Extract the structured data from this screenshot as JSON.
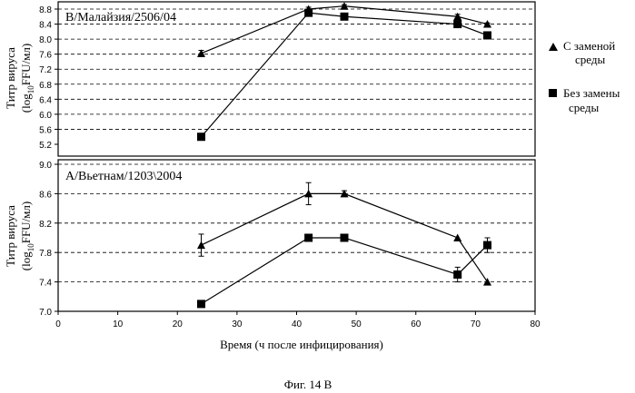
{
  "chart_data": [
    {
      "type": "line",
      "title": "B/Малайзия/2506/04",
      "ylabel_line1": "Титр вируса",
      "ylabel_line2_prefix": "(log",
      "ylabel_line2_sub": "10",
      "ylabel_line2_suffix": "FFU/мл)",
      "ylim": [
        5.2,
        8.8
      ],
      "yticks": [
        "8.8",
        "8.4",
        "8.0",
        "7.6",
        "7.2",
        "6.8",
        "6.4",
        "6.0",
        "5.6",
        "5.2"
      ],
      "grid": "dashed horizontal",
      "series": [
        {
          "name": "С заменой среды",
          "marker": "triangle",
          "x": [
            24,
            42,
            48,
            67,
            72
          ],
          "y": [
            7.62,
            8.8,
            8.88,
            8.6,
            8.4
          ],
          "err": [
            0.08,
            0.05,
            0.04,
            0.06,
            0.03
          ]
        },
        {
          "name": "Без замены среды",
          "marker": "square",
          "x": [
            24,
            42,
            48,
            67,
            72
          ],
          "y": [
            5.4,
            8.7,
            8.6,
            8.4,
            8.1
          ],
          "err": [
            0,
            0,
            0,
            0,
            0
          ]
        }
      ]
    },
    {
      "type": "line",
      "title": "A/Вьетнам/1203\\2004",
      "ylabel_line1": "Титр вируса",
      "ylabel_line2_prefix": "(log",
      "ylabel_line2_sub": "10",
      "ylabel_line2_suffix": "FFU/мл)",
      "ylim": [
        7.0,
        9.0
      ],
      "yticks": [
        "9.0",
        "8.6",
        "8.2",
        "7.8",
        "7.4",
        "7.0"
      ],
      "xlim": [
        0,
        80
      ],
      "xticks": [
        "0",
        "10",
        "20",
        "30",
        "40",
        "50",
        "60",
        "70",
        "80"
      ],
      "xlabel": "Время (ч после инфицирования)",
      "grid": "dashed horizontal",
      "series": [
        {
          "name": "С заменой среды",
          "marker": "triangle",
          "x": [
            24,
            42,
            48,
            67,
            72
          ],
          "y": [
            7.9,
            8.6,
            8.6,
            8.0,
            7.4
          ],
          "err": [
            0.15,
            0.15,
            0.04,
            0,
            0
          ]
        },
        {
          "name": "Без замены среды",
          "marker": "square",
          "x": [
            24,
            42,
            48,
            67,
            72
          ],
          "y": [
            7.1,
            8.0,
            8.0,
            7.5,
            7.9
          ],
          "err": [
            0,
            0.04,
            0.04,
            0.1,
            0.1
          ]
        }
      ]
    }
  ],
  "legend": [
    {
      "line1": "С заменой",
      "line2": "среды",
      "marker": "triangle"
    },
    {
      "line1": "Без замены",
      "line2": "среды",
      "marker": "square"
    }
  ],
  "caption": "Фиг. 14 В"
}
